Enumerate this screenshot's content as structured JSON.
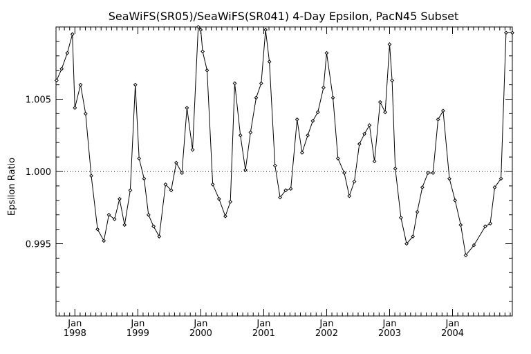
{
  "chart_data": {
    "type": "line",
    "title": "SeaWiFS(SR05)/SeaWiFS(SR041) 4-Day Epsilon, PacN45 Subset",
    "xlabel": "",
    "ylabel": "Epsilon Ratio",
    "xlim": [
      1997.7,
      2004.95
    ],
    "ylim": [
      0.99,
      1.01
    ],
    "yticks": [
      "0.995",
      "1.000",
      "1.005"
    ],
    "ytick_values": [
      0.995,
      1.0,
      1.005
    ],
    "xticks": [
      {
        "month": "Jan",
        "year": "1998",
        "x": 1998.0
      },
      {
        "month": "Jan",
        "year": "1999",
        "x": 1999.0
      },
      {
        "month": "Jan",
        "year": "2000",
        "x": 2000.0
      },
      {
        "month": "Jan",
        "year": "2001",
        "x": 2001.0
      },
      {
        "month": "Jan",
        "year": "2002",
        "x": 2002.0
      },
      {
        "month": "Jan",
        "year": "2003",
        "x": 2003.0
      },
      {
        "month": "Jan",
        "year": "2004",
        "x": 2004.0
      }
    ],
    "reference_line": 1.0,
    "marker": "diamond",
    "grid": false,
    "series": [
      {
        "x": [
          1997.71,
          1997.79,
          1997.88,
          1997.96,
          1998.0,
          1998.09,
          1998.17,
          1998.26,
          1998.36,
          1998.46,
          1998.54,
          1998.63,
          1998.71,
          1998.79,
          1998.88,
          1998.96,
          1999.02,
          1999.1,
          1999.17,
          1999.25,
          1999.34,
          1999.44,
          1999.53,
          1999.61,
          1999.7,
          1999.78,
          1999.87,
          1999.96,
          2000.0,
          2000.03,
          2000.1,
          2000.19,
          2000.29,
          2000.39,
          2000.47,
          2000.54,
          2000.63,
          2000.71,
          2000.79,
          2000.88,
          2000.96,
          2001.03,
          2001.09,
          2001.18,
          2001.26,
          2001.35,
          2001.43,
          2001.53,
          2001.61,
          2001.7,
          2001.78,
          2001.86,
          2001.95,
          2002.0,
          2002.1,
          2002.18,
          2002.28,
          2002.36,
          2002.44,
          2002.52,
          2002.6,
          2002.68,
          2002.76,
          2002.85,
          2002.93,
          2003.0,
          2003.04,
          2003.09,
          2003.18,
          2003.27,
          2003.37,
          2003.44,
          2003.52,
          2003.61,
          2003.69,
          2003.77,
          2003.85,
          2003.95,
          2004.04,
          2004.13,
          2004.21,
          2004.34,
          2004.52,
          2004.6,
          2004.67,
          2004.77,
          2004.85,
          2004.95
        ],
        "y": [
          1.0063,
          1.0071,
          1.0082,
          1.0095,
          1.0044,
          1.006,
          1.004,
          0.9997,
          0.996,
          0.9952,
          0.997,
          0.9967,
          0.9981,
          0.9963,
          0.9987,
          1.006,
          1.0009,
          0.9995,
          0.997,
          0.9962,
          0.9955,
          0.9991,
          0.9987,
          1.0006,
          0.9999,
          1.0044,
          1.0015,
          1.01,
          1.0098,
          1.0083,
          1.007,
          0.9991,
          0.9981,
          0.9969,
          0.9979,
          1.0061,
          1.0025,
          1.0001,
          1.0027,
          1.0051,
          1.0061,
          1.0098,
          1.0076,
          1.0004,
          0.9982,
          0.9987,
          0.9988,
          1.0036,
          1.0013,
          1.0025,
          1.0035,
          1.0041,
          1.0058,
          1.0082,
          1.0051,
          1.0009,
          0.9999,
          0.9983,
          0.9993,
          1.0019,
          1.0026,
          1.0032,
          1.0007,
          1.0048,
          1.0041,
          1.0088,
          1.0063,
          1.0002,
          0.9968,
          0.995,
          0.9955,
          0.9972,
          0.9989,
          0.9999,
          0.9999,
          1.0036,
          1.0042,
          0.9995,
          0.998,
          0.9963,
          0.9942,
          0.9949,
          0.9962,
          0.9964,
          0.9989,
          0.9995,
          1.0096,
          1.0096
        ]
      }
    ]
  }
}
